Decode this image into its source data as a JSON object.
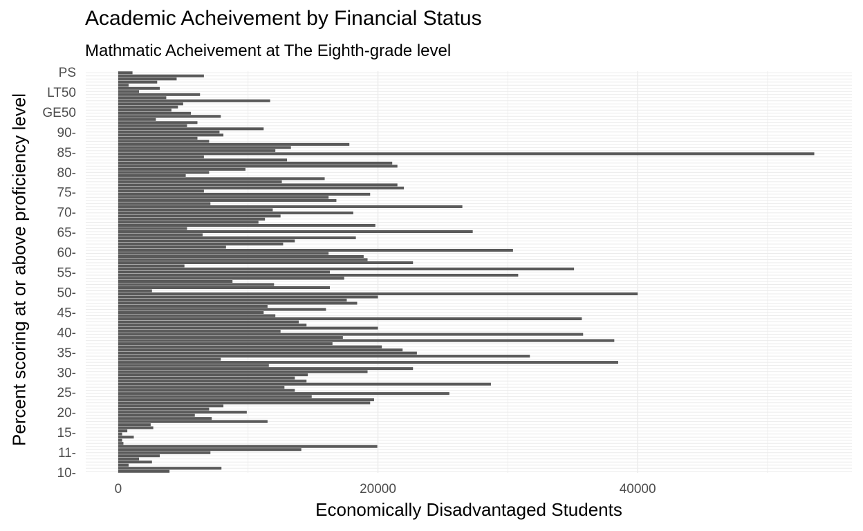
{
  "chart_data": {
    "type": "bar",
    "orientation": "horizontal",
    "title": "Academic Acheivement by Financial Status",
    "subtitle": "Mathmatic Acheivement at The Eighth-grade level",
    "xlabel": "Economically Disadvantaged Students",
    "ylabel": "Percent scoring at or above proficiency level",
    "xlim": [
      -2500,
      56500
    ],
    "x_ticks": [
      0,
      20000,
      40000
    ],
    "x_tick_labels": [
      "0",
      "20000",
      "40000"
    ],
    "grid": true,
    "bar_color": "#595959",
    "grid_color": "#ebebeb",
    "y_tick_labels_visible": [
      "PS",
      "LT50",
      "GE50",
      "90-",
      "85-",
      "80-",
      "75-",
      "70-",
      "65-",
      "60-",
      "55-",
      "50-",
      "45-",
      "40-",
      "35-",
      "30-",
      "25-",
      "20-",
      "15-",
      "11-",
      "10-"
    ],
    "values": [
      3950,
      7950,
      800,
      2600,
      1600,
      3200,
      7100,
      14100,
      19950,
      400,
      300,
      1200,
      300,
      700,
      2700,
      2500,
      11500,
      7200,
      5900,
      9900,
      7000,
      8100,
      19400,
      19700,
      14900,
      25500,
      13600,
      12800,
      28700,
      14500,
      13600,
      14600,
      19200,
      22700,
      11600,
      38500,
      7900,
      31700,
      23000,
      21900,
      20300,
      16500,
      38200,
      17300,
      35800,
      12500,
      20000,
      14500,
      13900,
      35700,
      12100,
      11200,
      16000,
      11500,
      18400,
      17600,
      20000,
      40000,
      2600,
      16300,
      12000,
      8800,
      17400,
      30800,
      16300,
      35100,
      5100,
      22700,
      19200,
      18900,
      16200,
      30400,
      8300,
      12700,
      13600,
      18300,
      6500,
      27300,
      5300,
      19800,
      10800,
      11300,
      12500,
      18100,
      11900,
      26500,
      7100,
      16800,
      16200,
      19400,
      6600,
      22000,
      21500,
      12600,
      15900,
      5200,
      7000,
      9800,
      21500,
      21100,
      13000,
      6600,
      53600,
      12100,
      13300,
      17800,
      7000,
      6100,
      8100,
      7800,
      11200,
      5300,
      6100,
      2900,
      7900,
      5600,
      4100,
      4600,
      5000,
      11700,
      3700,
      6300,
      1600,
      3200,
      800,
      3000,
      4500,
      6600,
      1100
    ]
  }
}
